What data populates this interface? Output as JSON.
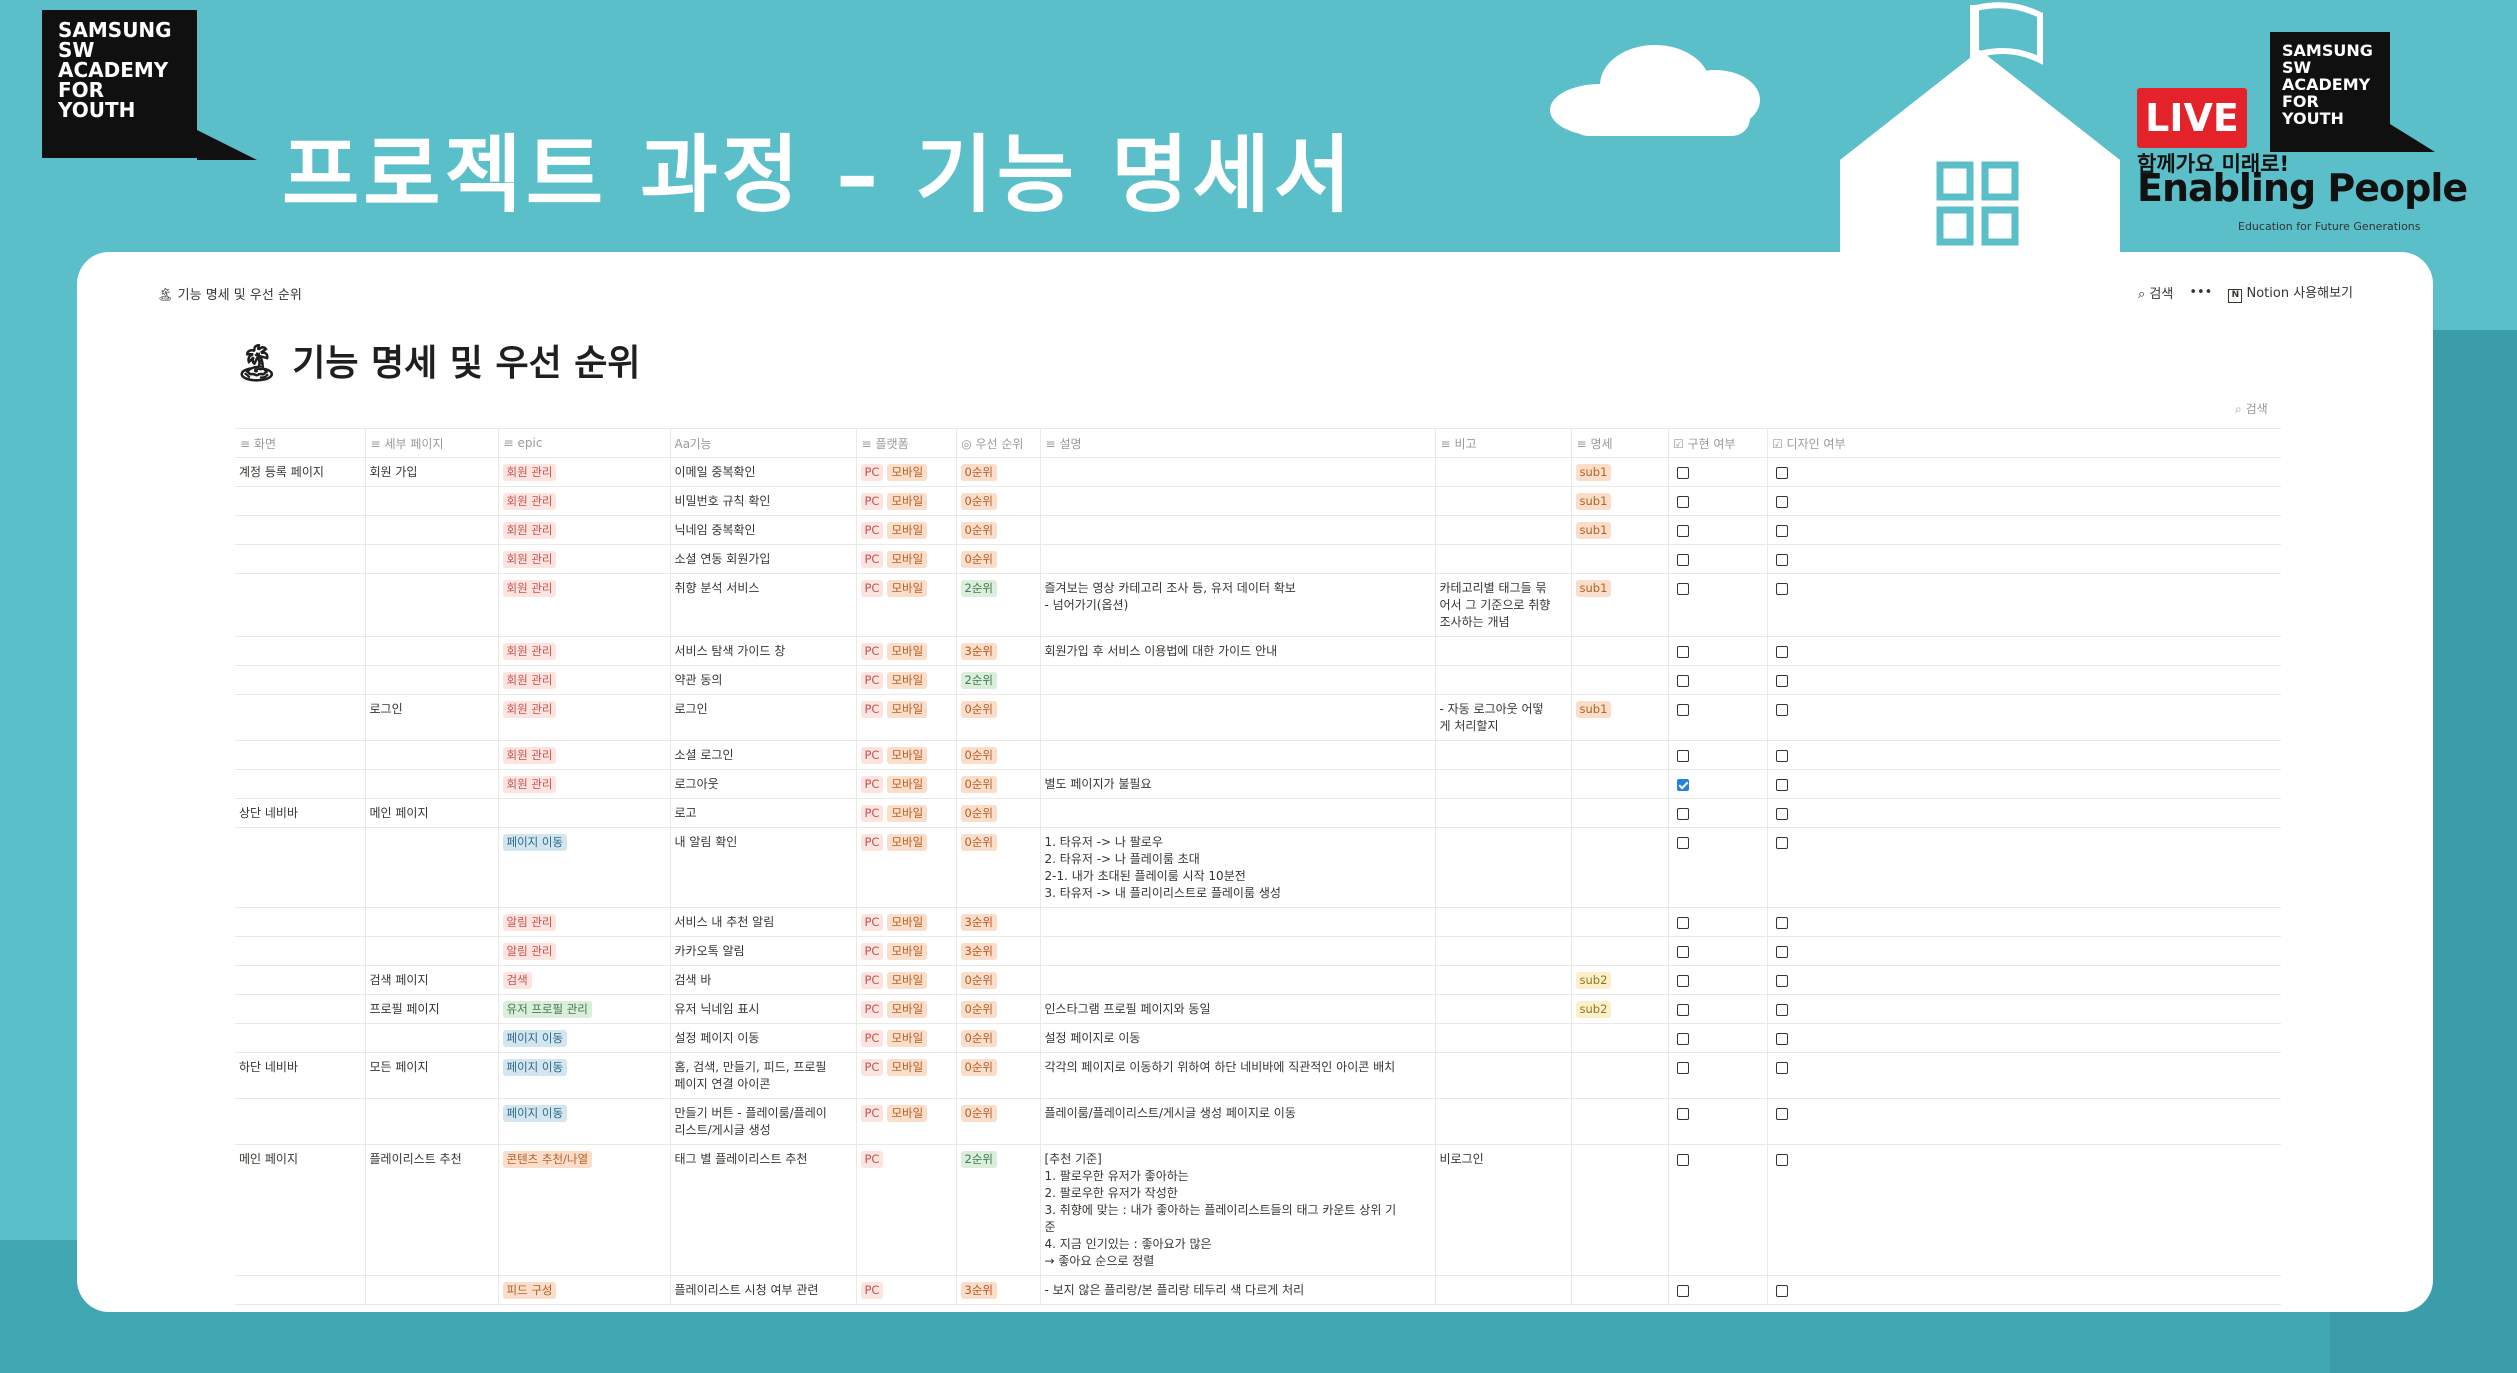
{
  "slide": {
    "title": "프로젝트 과정 – 기능 명세서",
    "logo_text": "SAMSUNG\nSW\nACADEMY\nFOR\nYOUTH",
    "live": "LIVE",
    "tagline": "함께가요 미래로!",
    "brand": "Enabling People",
    "edu": "Education for Future Generations"
  },
  "notion": {
    "breadcrumb": "기능 명세 및 우선 순위",
    "search": "검색",
    "more": "•••",
    "try_notion": "Notion 사용해보기",
    "page_title": "기능 명세 및 우선 순위",
    "table_search": "검색"
  },
  "columns": [
    "화면",
    "세부 페이지",
    "epic",
    "기능",
    "플랫폼",
    "우선 순위",
    "설명",
    "비고",
    "명세",
    "구현 여부",
    "디자인 여부"
  ],
  "rows": [
    {
      "screen": "계정 등록 페이지",
      "sub": "회원 가입",
      "epic": "회원 관리",
      "epic_color": "red",
      "feature": "이메일 중복확인",
      "platform": [
        "PC",
        "모바일"
      ],
      "priority": "0순위",
      "desc": "",
      "note": "",
      "spec": "sub1",
      "impl": false,
      "design": false
    },
    {
      "screen": "",
      "sub": "",
      "epic": "회원 관리",
      "epic_color": "red",
      "feature": "비밀번호 규칙 확인",
      "platform": [
        "PC",
        "모바일"
      ],
      "priority": "0순위",
      "desc": "",
      "note": "",
      "spec": "sub1",
      "impl": false,
      "design": false
    },
    {
      "screen": "",
      "sub": "",
      "epic": "회원 관리",
      "epic_color": "red",
      "feature": "닉네임 중복확인",
      "platform": [
        "PC",
        "모바일"
      ],
      "priority": "0순위",
      "desc": "",
      "note": "",
      "spec": "sub1",
      "impl": false,
      "design": false
    },
    {
      "screen": "",
      "sub": "",
      "epic": "회원 관리",
      "epic_color": "red",
      "feature": "소셜 연동 회원가입",
      "platform": [
        "PC",
        "모바일"
      ],
      "priority": "0순위",
      "desc": "",
      "note": "",
      "spec": "",
      "impl": false,
      "design": false
    },
    {
      "screen": "",
      "sub": "",
      "epic": "회원 관리",
      "epic_color": "red",
      "feature": "취향 분석 서비스",
      "platform": [
        "PC",
        "모바일"
      ],
      "priority": "2순위",
      "desc": "즐겨보는 영상 카테고리 조사 등, 유저 데이터 확보\n- 넘어가기(옵션)",
      "note": "카테고리별 태그들 묶\n어서 그 기준으로 취향\n조사하는 개념",
      "spec": "sub1",
      "impl": false,
      "design": false
    },
    {
      "screen": "",
      "sub": "",
      "epic": "회원 관리",
      "epic_color": "red",
      "feature": "서비스 탐색 가이드 창",
      "platform": [
        "PC",
        "모바일"
      ],
      "priority": "3순위",
      "desc": "회원가입 후 서비스 이용법에 대한 가이드 안내",
      "note": "",
      "spec": "",
      "impl": false,
      "design": false
    },
    {
      "screen": "",
      "sub": "",
      "epic": "회원 관리",
      "epic_color": "red",
      "feature": "약관 동의",
      "platform": [
        "PC",
        "모바일"
      ],
      "priority": "2순위",
      "desc": "",
      "note": "",
      "spec": "",
      "impl": false,
      "design": false
    },
    {
      "screen": "",
      "sub": "로그인",
      "epic": "회원 관리",
      "epic_color": "red",
      "feature": "로그인",
      "platform": [
        "PC",
        "모바일"
      ],
      "priority": "0순위",
      "desc": "",
      "note": "- 자동 로그아웃 어떻\n게 처리할지",
      "spec": "sub1",
      "impl": false,
      "design": false
    },
    {
      "screen": "",
      "sub": "",
      "epic": "회원 관리",
      "epic_color": "red",
      "feature": "소셜 로그인",
      "platform": [
        "PC",
        "모바일"
      ],
      "priority": "0순위",
      "desc": "",
      "note": "",
      "spec": "",
      "impl": false,
      "design": false
    },
    {
      "screen": "",
      "sub": "",
      "epic": "회원 관리",
      "epic_color": "red",
      "feature": "로그아웃",
      "platform": [
        "PC",
        "모바일"
      ],
      "priority": "0순위",
      "desc": "별도 페이지가 불필요",
      "note": "",
      "spec": "",
      "impl": true,
      "design": false
    },
    {
      "screen": "상단 네비바",
      "sub": "메인 페이지",
      "epic": "",
      "epic_color": "",
      "feature": "로고",
      "platform": [
        "PC",
        "모바일"
      ],
      "priority": "0순위",
      "desc": "",
      "note": "",
      "spec": "",
      "impl": false,
      "design": false
    },
    {
      "screen": "",
      "sub": "",
      "epic": "페이지 이동",
      "epic_color": "blue",
      "feature": "내 알림 확인",
      "platform": [
        "PC",
        "모바일"
      ],
      "priority": "0순위",
      "desc": "1. 타유저 -> 나 팔로우\n2. 타유저 -> 나 플레이룸 초대\n2-1. 내가 초대된 플레이룸 시작 10분전\n3. 타유저 -> 내 플리이리스트로 플레이룸 생성",
      "note": "",
      "spec": "",
      "impl": false,
      "design": false
    },
    {
      "screen": "",
      "sub": "",
      "epic": "알림 관리",
      "epic_color": "red",
      "feature": "서비스 내 추천 알림",
      "platform": [
        "PC",
        "모바일"
      ],
      "priority": "3순위",
      "desc": "",
      "note": "",
      "spec": "",
      "impl": false,
      "design": false
    },
    {
      "screen": "",
      "sub": "",
      "epic": "알림 관리",
      "epic_color": "red",
      "feature": "카카오톡 알림",
      "platform": [
        "PC",
        "모바일"
      ],
      "priority": "3순위",
      "desc": "",
      "note": "",
      "spec": "",
      "impl": false,
      "design": false
    },
    {
      "screen": "",
      "sub": "검색 페이지",
      "epic": "검색",
      "epic_color": "red",
      "feature": "검색 바",
      "platform": [
        "PC",
        "모바일"
      ],
      "priority": "0순위",
      "desc": "",
      "note": "",
      "spec": "sub2",
      "impl": false,
      "design": false
    },
    {
      "screen": "",
      "sub": "프로필 페이지",
      "epic": "유저 프로필 관리",
      "epic_color": "green",
      "feature": "유저 닉네임 표시",
      "platform": [
        "PC",
        "모바일"
      ],
      "priority": "0순위",
      "desc": "인스타그램 프로필 페이지와 동일",
      "note": "",
      "spec": "sub2",
      "impl": false,
      "design": false
    },
    {
      "screen": "",
      "sub": "",
      "epic": "페이지 이동",
      "epic_color": "blue",
      "feature": "설정 페이지 이동",
      "platform": [
        "PC",
        "모바일"
      ],
      "priority": "0순위",
      "desc": "설정 페이지로 이동",
      "note": "",
      "spec": "",
      "impl": false,
      "design": false
    },
    {
      "screen": "하단 네비바",
      "sub": "모든 페이지",
      "epic": "페이지 이동",
      "epic_color": "blue",
      "feature": "홈, 검색, 만들기, 피드, 프로필\n페이지 연결 아이콘",
      "platform": [
        "PC",
        "모바일"
      ],
      "priority": "0순위",
      "desc": "각각의 페이지로 이동하기 위하여 하단 네비바에 직관적인 아이콘 배치",
      "note": "",
      "spec": "",
      "impl": false,
      "design": false
    },
    {
      "screen": "",
      "sub": "",
      "epic": "페이지 이동",
      "epic_color": "blue",
      "feature": "만들기 버튼 - 플레이룸/플레이\n리스트/게시글 생성",
      "platform": [
        "PC",
        "모바일"
      ],
      "priority": "0순위",
      "desc": "플레이룸/플레이리스트/게시글 생성 페이지로 이동",
      "note": "",
      "spec": "",
      "impl": false,
      "design": false
    },
    {
      "screen": "메인 페이지",
      "sub": "플레이리스트 추천",
      "epic": "콘텐츠 추천/나열",
      "epic_color": "orange",
      "feature": "태그 별 플레이리스트 추천",
      "platform": [
        "PC"
      ],
      "priority": "2순위",
      "desc": "[추천 기준]\n1. 팔로우한 유저가 좋아하는\n2. 팔로우한 유저가 작성한\n3. 취향에 맞는 : 내가 좋아하는 플레이리스트들의 태그 카운트 상위 기\n준\n4. 지금 인기있는 : 좋아요가 많은\n→ 좋아요 순으로 정렬",
      "note": "비로그인",
      "spec": "",
      "impl": false,
      "design": false
    },
    {
      "screen": "",
      "sub": "",
      "epic": "피드 구성",
      "epic_color": "orange",
      "feature": "플레이리스트 시청 여부 관련",
      "platform": [
        "PC"
      ],
      "priority": "3순위",
      "desc": "- 보지 않은 플리랑/본 플리랑 테두리 색 다르게 처리",
      "note": "",
      "spec": "",
      "impl": false,
      "design": false
    }
  ]
}
